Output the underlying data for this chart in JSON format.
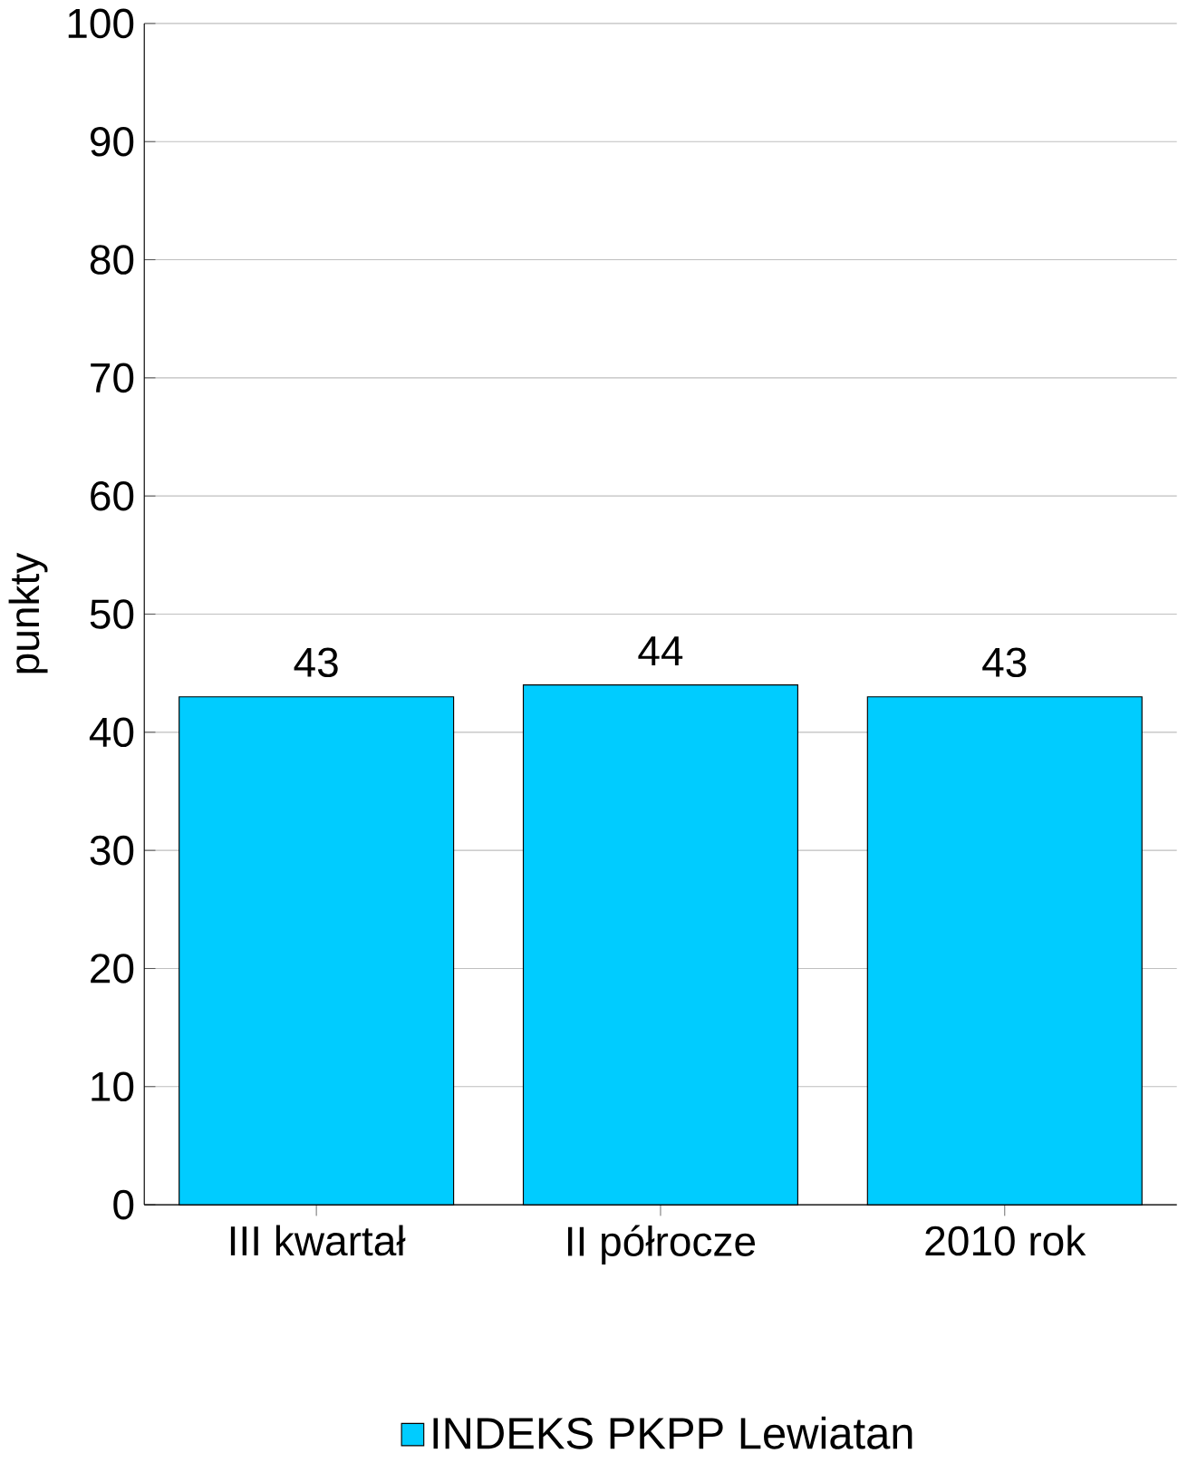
{
  "chart_data": {
    "type": "bar",
    "ylabel": "punkty",
    "categories": [
      "III kwartał",
      "II półrocze",
      "2010 rok"
    ],
    "series": [
      {
        "name": "INDEKS  PKPP Lewiatan",
        "color": "#00ccff",
        "values": [
          43,
          44,
          43
        ]
      }
    ],
    "ylim": [
      0,
      100
    ],
    "yticks": [
      0,
      10,
      20,
      30,
      40,
      50,
      60,
      70,
      80,
      90,
      100
    ],
    "grid": "y",
    "legend": "bottom",
    "data_labels": true
  }
}
